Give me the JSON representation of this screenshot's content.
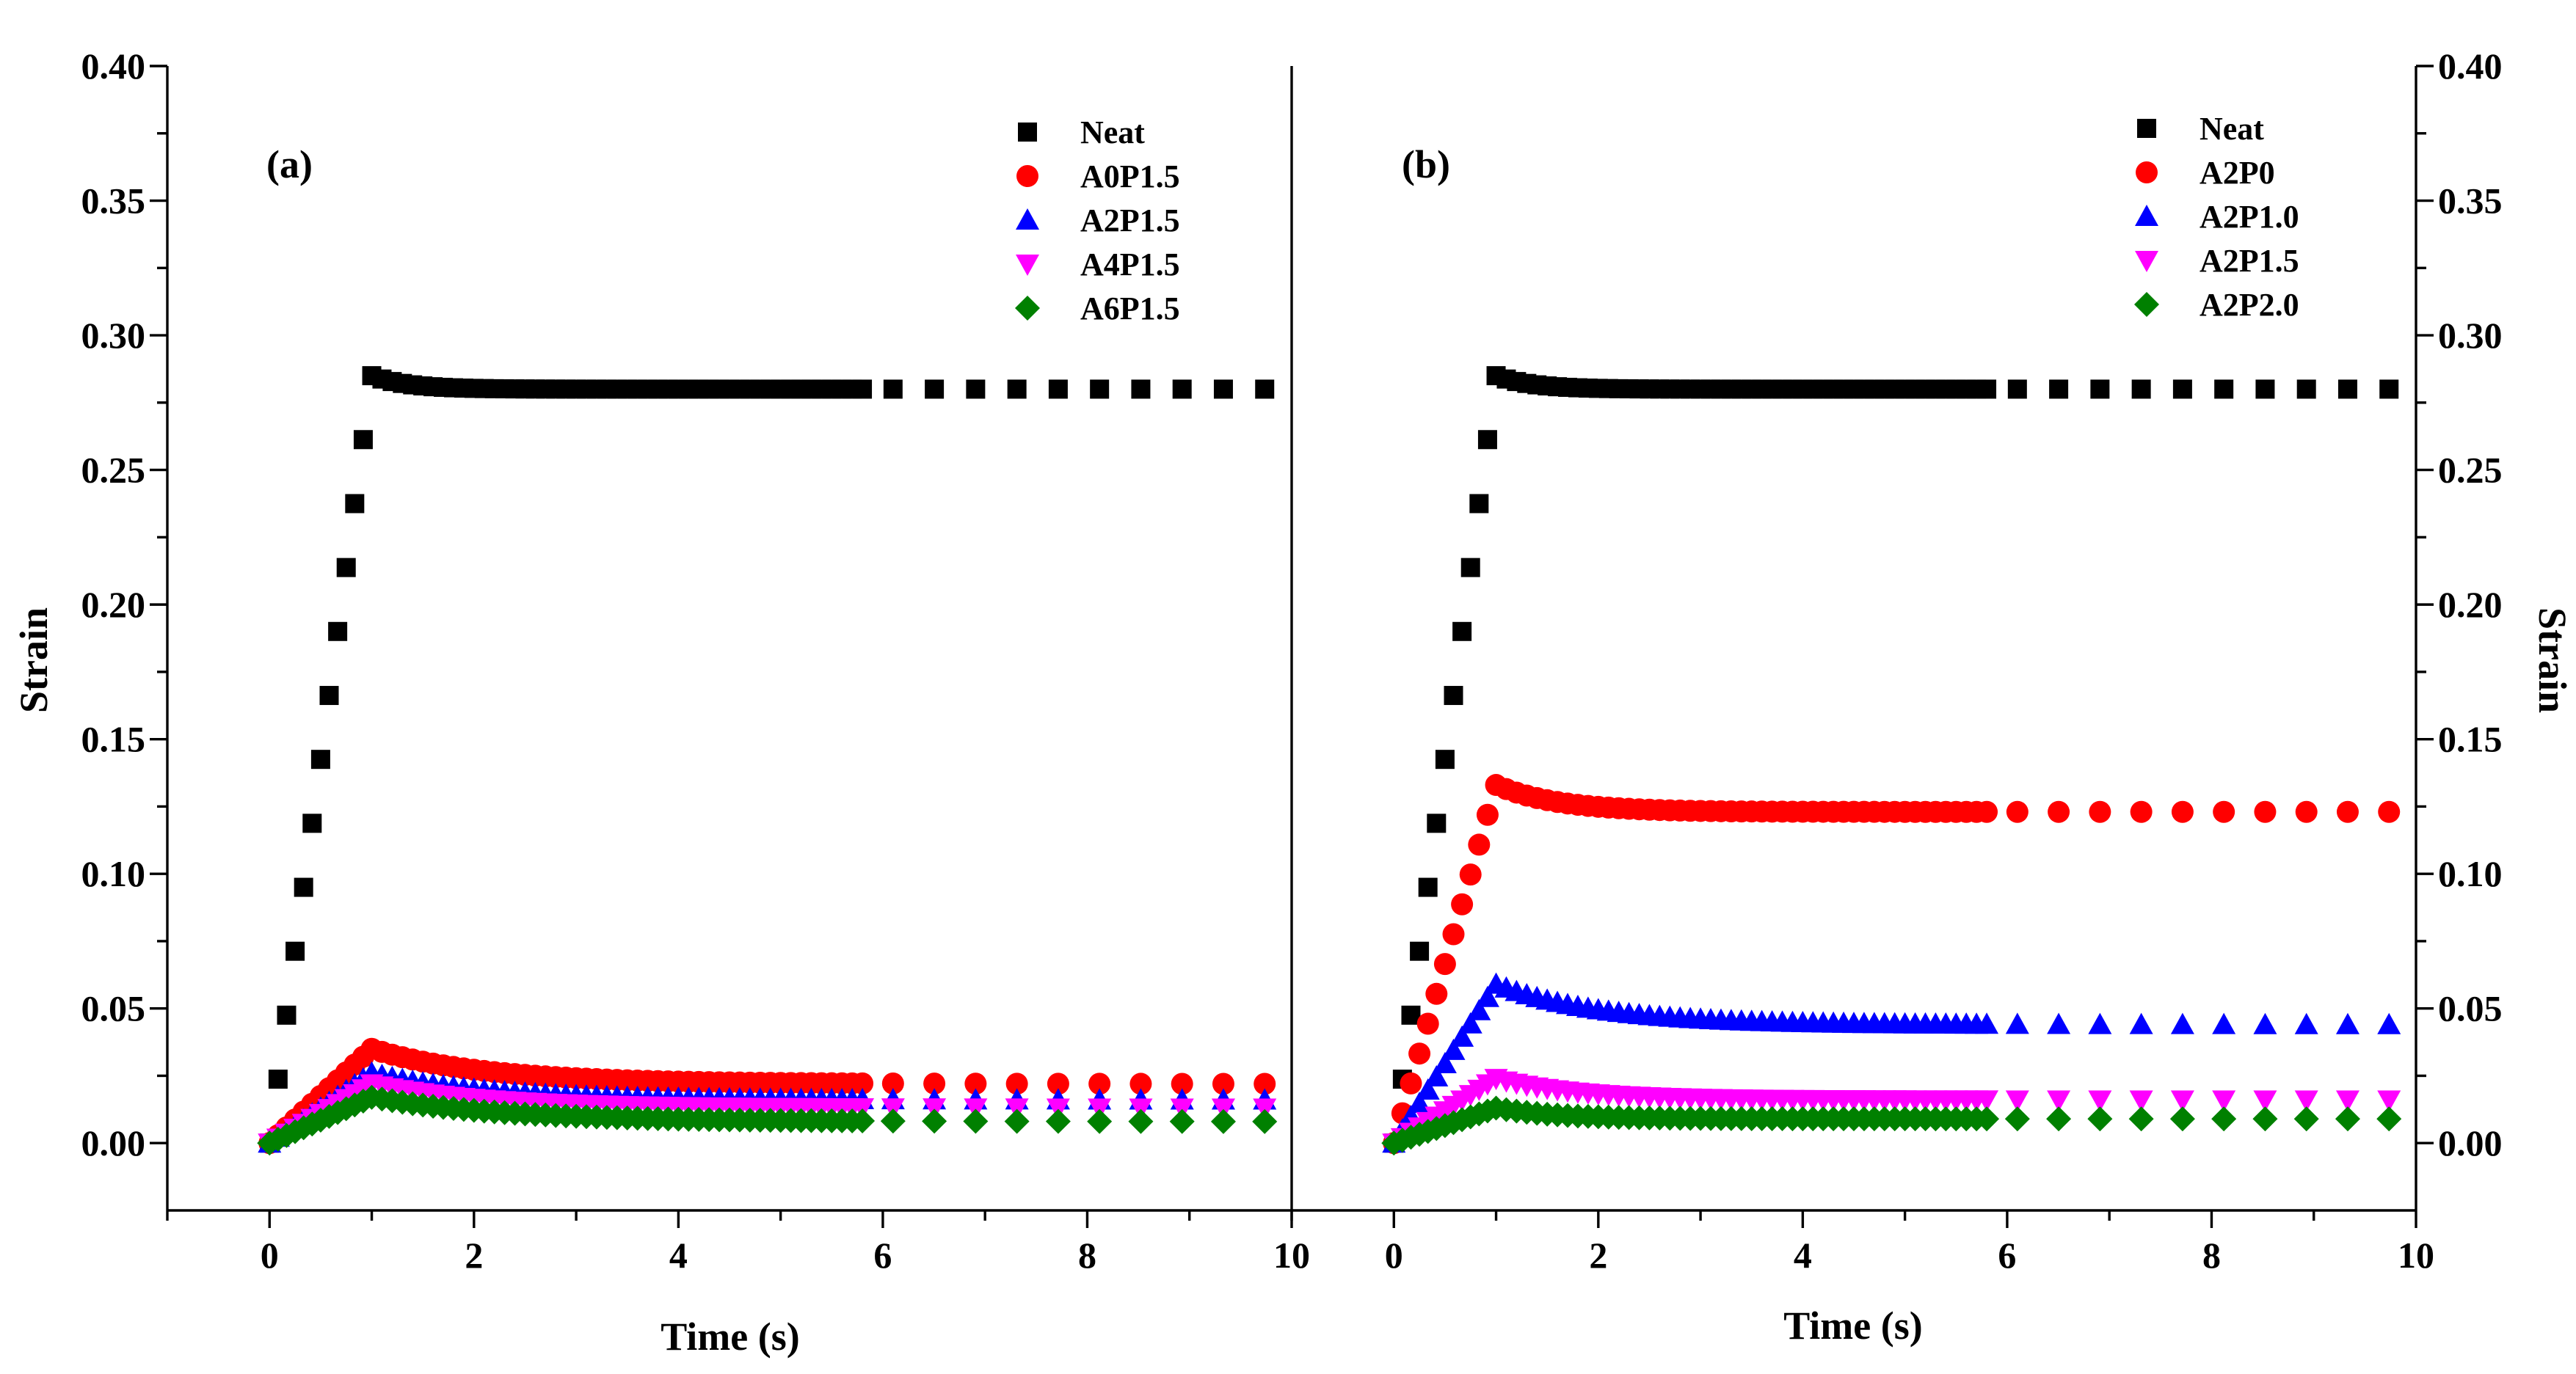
{
  "chart_data": [
    {
      "type": "scatter",
      "panel_label": "(a)",
      "xlabel": "Time (s)",
      "ylabel": "Strain",
      "xlim": [
        -1,
        10
      ],
      "ylim": [
        -0.025,
        0.4
      ],
      "xticks": [
        "0",
        "2",
        "4",
        "6",
        "8",
        "10"
      ],
      "yticks": [
        "0.00",
        "0.05",
        "0.10",
        "0.15",
        "0.20",
        "0.25",
        "0.30",
        "0.35",
        "0.40"
      ],
      "legend_position": "top-right",
      "series": [
        {
          "name": "Neat",
          "color": "#000000",
          "marker": "square",
          "peak": 0.285,
          "final": 0.28,
          "decay": 0.35
        },
        {
          "name": "A0P1.5",
          "color": "#ff0000",
          "marker": "circle",
          "peak": 0.035,
          "final": 0.022,
          "decay": 1.1
        },
        {
          "name": "A2P1.5",
          "color": "#0000ff",
          "marker": "triangle-up",
          "peak": 0.026,
          "final": 0.016,
          "decay": 1.1
        },
        {
          "name": "A4P1.5",
          "color": "#ff00ff",
          "marker": "triangle-down",
          "peak": 0.022,
          "final": 0.013,
          "decay": 1.1
        },
        {
          "name": "A6P1.5",
          "color": "#008000",
          "marker": "diamond",
          "peak": 0.017,
          "final": 0.008,
          "decay": 1.3
        }
      ]
    },
    {
      "type": "scatter",
      "panel_label": "(b)",
      "xlabel": "Time (s)",
      "ylabel": "Strain",
      "xlim": [
        -1,
        10
      ],
      "ylim": [
        -0.025,
        0.4
      ],
      "xticks": [
        "0",
        "2",
        "4",
        "6",
        "8",
        "10"
      ],
      "yticks": [
        "0.00",
        "0.05",
        "0.10",
        "0.15",
        "0.20",
        "0.25",
        "0.30",
        "0.35",
        "0.40"
      ],
      "legend_position": "top-right",
      "series": [
        {
          "name": "Neat",
          "color": "#000000",
          "marker": "square",
          "peak": 0.285,
          "final": 0.28,
          "decay": 0.35
        },
        {
          "name": "A2P0",
          "color": "#ff0000",
          "marker": "circle",
          "peak": 0.133,
          "final": 0.123,
          "decay": 0.6
        },
        {
          "name": "A2P1.0",
          "color": "#0000ff",
          "marker": "triangle-up",
          "peak": 0.059,
          "final": 0.044,
          "decay": 1.0
        },
        {
          "name": "A2P1.5",
          "color": "#ff00ff",
          "marker": "triangle-down",
          "peak": 0.024,
          "final": 0.016,
          "decay": 0.8
        },
        {
          "name": "A2P2.0",
          "color": "#008000",
          "marker": "diamond",
          "peak": 0.013,
          "final": 0.009,
          "decay": 0.6
        }
      ]
    }
  ]
}
